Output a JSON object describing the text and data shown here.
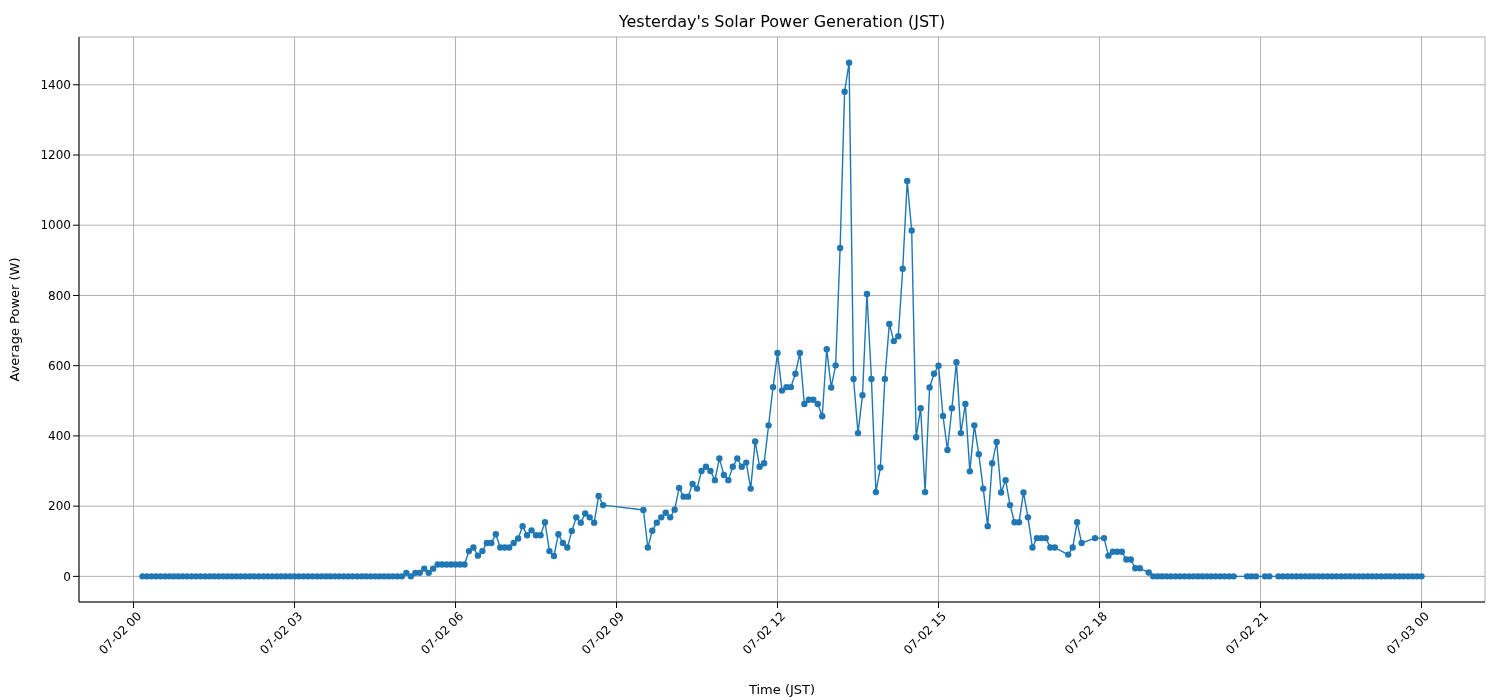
{
  "chart_data": {
    "type": "line",
    "title": "Yesterday's Solar Power Generation (JST)",
    "xlabel": "Time (JST)",
    "ylabel": "Average Power (W)",
    "x": [
      "--07-02T00:10",
      "--07-02T00:15",
      "--07-02T00:20",
      "--07-02T00:25",
      "--07-02T00:30",
      "--07-02T00:35",
      "--07-02T00:40",
      "--07-02T00:45",
      "--07-02T00:50",
      "--07-02T00:55",
      "--07-02T01:00",
      "--07-02T01:05",
      "--07-02T01:10",
      "--07-02T01:15",
      "--07-02T01:20",
      "--07-02T01:25",
      "--07-02T01:30",
      "--07-02T01:35",
      "--07-02T01:40",
      "--07-02T01:45",
      "--07-02T01:50",
      "--07-02T01:55",
      "--07-02T02:00",
      "--07-02T02:05",
      "--07-02T02:10",
      "--07-02T02:15",
      "--07-02T02:20",
      "--07-02T02:25",
      "--07-02T02:30",
      "--07-02T02:35",
      "--07-02T02:40",
      "--07-02T02:45",
      "--07-02T02:50",
      "--07-02T02:55",
      "--07-02T03:00",
      "--07-02T03:05",
      "--07-02T03:10",
      "--07-02T03:15",
      "--07-02T03:20",
      "--07-02T03:25",
      "--07-02T03:30",
      "--07-02T03:35",
      "--07-02T03:40",
      "--07-02T03:45",
      "--07-02T03:50",
      "--07-02T03:55",
      "--07-02T04:00",
      "--07-02T04:05",
      "--07-02T04:10",
      "--07-02T04:15",
      "--07-02T04:20",
      "--07-02T04:25",
      "--07-02T04:30",
      "--07-02T04:35",
      "--07-02T04:40",
      "--07-02T04:45",
      "--07-02T04:50",
      "--07-02T04:55",
      "--07-02T05:00",
      "--07-02T05:05",
      "--07-02T05:10",
      "--07-02T05:15",
      "--07-02T05:20",
      "--07-02T05:25",
      "--07-02T05:30",
      "--07-02T05:35",
      "--07-02T05:40",
      "--07-02T05:45",
      "--07-02T05:50",
      "--07-02T05:55",
      "--07-02T06:00",
      "--07-02T06:05",
      "--07-02T06:10",
      "--07-02T06:15",
      "--07-02T06:20",
      "--07-02T06:25",
      "--07-02T06:30",
      "--07-02T06:35",
      "--07-02T06:40",
      "--07-02T06:45",
      "--07-02T06:50",
      "--07-02T06:55",
      "--07-02T07:00",
      "--07-02T07:05",
      "--07-02T07:10",
      "--07-02T07:15",
      "--07-02T07:20",
      "--07-02T07:25",
      "--07-02T07:30",
      "--07-02T07:35",
      "--07-02T07:40",
      "--07-02T07:45",
      "--07-02T07:50",
      "--07-02T07:55",
      "--07-02T08:00",
      "--07-02T08:05",
      "--07-02T08:10",
      "--07-02T08:15",
      "--07-02T08:20",
      "--07-02T08:25",
      "--07-02T08:30",
      "--07-02T08:35",
      "--07-02T08:40",
      "--07-02T08:45",
      "--07-02T09:30",
      "--07-02T09:35",
      "--07-02T09:40",
      "--07-02T09:45",
      "--07-02T09:50",
      "--07-02T09:55",
      "--07-02T10:00",
      "--07-02T10:05",
      "--07-02T10:10",
      "--07-02T10:15",
      "--07-02T10:20",
      "--07-02T10:25",
      "--07-02T10:30",
      "--07-02T10:35",
      "--07-02T10:40",
      "--07-02T10:45",
      "--07-02T10:50",
      "--07-02T10:55",
      "--07-02T11:00",
      "--07-02T11:05",
      "--07-02T11:10",
      "--07-02T11:15",
      "--07-02T11:20",
      "--07-02T11:25",
      "--07-02T11:30",
      "--07-02T11:35",
      "--07-02T11:40",
      "--07-02T11:45",
      "--07-02T11:50",
      "--07-02T11:55",
      "--07-02T12:00",
      "--07-02T12:05",
      "--07-02T12:10",
      "--07-02T12:15",
      "--07-02T12:20",
      "--07-02T12:25",
      "--07-02T12:30",
      "--07-02T12:35",
      "--07-02T12:40",
      "--07-02T12:45",
      "--07-02T12:50",
      "--07-02T12:55",
      "--07-02T13:00",
      "--07-02T13:05",
      "--07-02T13:10",
      "--07-02T13:15",
      "--07-02T13:20",
      "--07-02T13:25",
      "--07-02T13:30",
      "--07-02T13:35",
      "--07-02T13:40",
      "--07-02T13:45",
      "--07-02T13:50",
      "--07-02T13:55",
      "--07-02T14:00",
      "--07-02T14:05",
      "--07-02T14:10",
      "--07-02T14:15",
      "--07-02T14:20",
      "--07-02T14:25",
      "--07-02T14:30",
      "--07-02T14:35",
      "--07-02T14:40",
      "--07-02T14:45",
      "--07-02T14:50",
      "--07-02T14:55",
      "--07-02T15:00",
      "--07-02T15:05",
      "--07-02T15:10",
      "--07-02T15:15",
      "--07-02T15:20",
      "--07-02T15:25",
      "--07-02T15:30",
      "--07-02T15:35",
      "--07-02T15:40",
      "--07-02T15:45",
      "--07-02T15:50",
      "--07-02T15:55",
      "--07-02T16:00",
      "--07-02T16:05",
      "--07-02T16:10",
      "--07-02T16:15",
      "--07-02T16:20",
      "--07-02T16:25",
      "--07-02T16:30",
      "--07-02T16:35",
      "--07-02T16:40",
      "--07-02T16:45",
      "--07-02T16:50",
      "--07-02T16:55",
      "--07-02T17:00",
      "--07-02T17:05",
      "--07-02T17:10",
      "--07-02T17:25",
      "--07-02T17:30",
      "--07-02T17:35",
      "--07-02T17:40",
      "--07-02T17:55",
      "--07-02T18:05",
      "--07-02T18:10",
      "--07-02T18:15",
      "--07-02T18:20",
      "--07-02T18:25",
      "--07-02T18:30",
      "--07-02T18:35",
      "--07-02T18:40",
      "--07-02T18:45",
      "--07-02T18:55",
      "--07-02T19:00",
      "--07-02T19:05",
      "--07-02T19:10",
      "--07-02T19:15",
      "--07-02T19:20",
      "--07-02T19:25",
      "--07-02T19:30",
      "--07-02T19:35",
      "--07-02T19:40",
      "--07-02T19:45",
      "--07-02T19:50",
      "--07-02T19:55",
      "--07-02T20:00",
      "--07-02T20:05",
      "--07-02T20:10",
      "--07-02T20:15",
      "--07-02T20:20",
      "--07-02T20:25",
      "--07-02T20:30",
      "--07-02T20:45",
      "--07-02T20:50",
      "--07-02T20:55",
      "--07-02T21:05",
      "--07-02T21:10",
      "--07-02T21:20",
      "--07-02T21:25",
      "--07-02T21:30",
      "--07-02T21:35",
      "--07-02T21:40",
      "--07-02T21:45",
      "--07-02T21:50",
      "--07-02T21:55",
      "--07-02T22:00",
      "--07-02T22:05",
      "--07-02T22:10",
      "--07-02T22:15",
      "--07-02T22:20",
      "--07-02T22:25",
      "--07-02T22:30",
      "--07-02T22:35",
      "--07-02T22:40",
      "--07-02T22:45",
      "--07-02T22:50",
      "--07-02T22:55",
      "--07-02T23:00",
      "--07-02T23:05",
      "--07-02T23:10",
      "--07-02T23:15",
      "--07-02T23:20",
      "--07-02T23:25",
      "--07-02T23:30",
      "--07-02T23:35",
      "--07-02T23:40",
      "--07-02T23:45",
      "--07-02T23:50",
      "--07-02T23:55",
      "--07-03T00:00"
    ],
    "series": [
      {
        "color": "#1f77b4",
        "values": [
          0,
          0,
          0,
          0,
          0,
          0,
          0,
          0,
          0,
          0,
          0,
          0,
          0,
          0,
          0,
          0,
          0,
          0,
          0,
          0,
          0,
          0,
          0,
          0,
          0,
          0,
          0,
          0,
          0,
          0,
          0,
          0,
          0,
          0,
          0,
          0,
          0,
          0,
          0,
          0,
          0,
          0,
          0,
          0,
          0,
          0,
          0,
          0,
          0,
          0,
          0,
          0,
          0,
          0,
          0,
          0,
          0,
          0,
          0,
          10,
          0,
          10,
          10,
          22,
          10,
          22,
          34,
          34,
          34,
          34,
          34,
          34,
          34,
          72,
          82,
          59,
          72,
          95,
          95,
          120,
          82,
          82,
          82,
          95,
          108,
          143,
          117,
          131,
          117,
          117,
          154,
          72,
          58,
          120,
          95,
          82,
          129,
          168,
          153,
          179,
          168,
          153,
          229,
          203,
          189,
          82,
          130,
          153,
          168,
          181,
          168,
          190,
          252,
          227,
          227,
          263,
          250,
          300,
          312,
          300,
          274,
          336,
          289,
          274,
          312,
          336,
          312,
          324,
          250,
          384,
          312,
          322,
          430,
          539,
          636,
          529,
          539,
          539,
          577,
          636,
          491,
          503,
          503,
          491,
          456,
          647,
          538,
          601,
          935,
          1380,
          1463,
          562,
          408,
          516,
          804,
          562,
          240,
          310,
          562,
          719,
          670,
          684,
          876,
          1126,
          985,
          396,
          479,
          240,
          538,
          577,
          600,
          457,
          360,
          479,
          610,
          408,
          491,
          299,
          430,
          348,
          250,
          143,
          322,
          383,
          239,
          274,
          203,
          154,
          154,
          239,
          168,
          82,
          109,
          109,
          109,
          82,
          82,
          62,
          82,
          154,
          95,
          109,
          109,
          59,
          70,
          70,
          70,
          48,
          48,
          23,
          23,
          11,
          0,
          0,
          0,
          0,
          0,
          0,
          0,
          0,
          0,
          0,
          0,
          0,
          0,
          0,
          0,
          0,
          0,
          0,
          0,
          0,
          0,
          0,
          0,
          0,
          0,
          0,
          0,
          0,
          0,
          0,
          0,
          0,
          0,
          0,
          0,
          0,
          0,
          0,
          0,
          0,
          0,
          0,
          0,
          0,
          0,
          0,
          0,
          0,
          0,
          0,
          0,
          0,
          0,
          0,
          0,
          0,
          0
        ]
      }
    ],
    "xlim": [
      "--07-01T22:59",
      "--07-03T01:11"
    ],
    "ylim": [
      -73,
      1536
    ],
    "xticks": [
      {
        "value": "--07-02T00:00",
        "label": "07-02 00"
      },
      {
        "value": "--07-02T03:00",
        "label": "07-02 03"
      },
      {
        "value": "--07-02T06:00",
        "label": "07-02 06"
      },
      {
        "value": "--07-02T09:00",
        "label": "07-02 09"
      },
      {
        "value": "--07-02T12:00",
        "label": "07-02 12"
      },
      {
        "value": "--07-02T15:00",
        "label": "07-02 15"
      },
      {
        "value": "--07-02T18:00",
        "label": "07-02 18"
      },
      {
        "value": "--07-02T21:00",
        "label": "07-02 21"
      },
      {
        "value": "--07-03T00:00",
        "label": "07-03 00"
      }
    ],
    "yticks": [
      0,
      200,
      400,
      600,
      800,
      1000,
      1200,
      1400
    ],
    "grid": true,
    "marker": "circle",
    "line_style": "solid"
  }
}
